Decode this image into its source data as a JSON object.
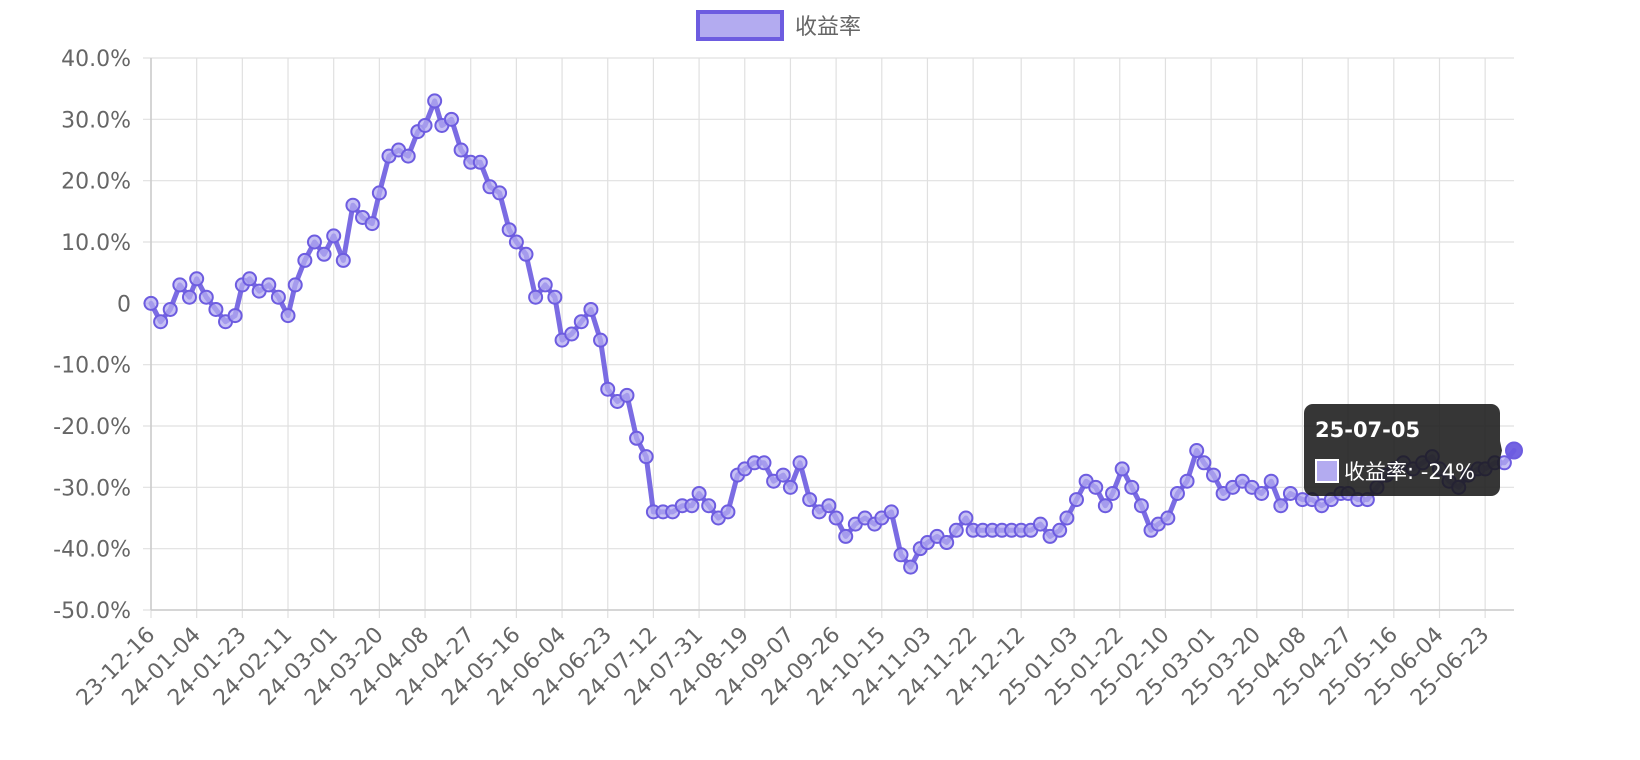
{
  "chart_data": {
    "type": "line",
    "series": [
      {
        "name": "收益率",
        "color": "#6d5ce0",
        "fill_color": "#b3abf0",
        "points": [
          [
            "23-12-16",
            0
          ],
          [
            "23-12-20",
            -3
          ],
          [
            "23-12-24",
            -1
          ],
          [
            "23-12-28",
            3
          ],
          [
            "24-01-01",
            1
          ],
          [
            "24-01-04",
            4
          ],
          [
            "24-01-08",
            1
          ],
          [
            "24-01-12",
            -1
          ],
          [
            "24-01-16",
            -3
          ],
          [
            "24-01-20",
            -2
          ],
          [
            "24-01-23",
            3
          ],
          [
            "24-01-26",
            4
          ],
          [
            "24-01-30",
            2
          ],
          [
            "24-02-03",
            3
          ],
          [
            "24-02-07",
            1
          ],
          [
            "24-02-11",
            -2
          ],
          [
            "24-02-14",
            3
          ],
          [
            "24-02-18",
            7
          ],
          [
            "24-02-22",
            10
          ],
          [
            "24-02-26",
            8
          ],
          [
            "24-03-01",
            11
          ],
          [
            "24-03-05",
            7
          ],
          [
            "24-03-09",
            16
          ],
          [
            "24-03-13",
            14
          ],
          [
            "24-03-17",
            13
          ],
          [
            "24-03-20",
            18
          ],
          [
            "24-03-24",
            24
          ],
          [
            "24-03-28",
            25
          ],
          [
            "24-04-01",
            24
          ],
          [
            "24-04-05",
            28
          ],
          [
            "24-04-08",
            29
          ],
          [
            "24-04-12",
            33
          ],
          [
            "24-04-15",
            29
          ],
          [
            "24-04-19",
            30
          ],
          [
            "24-04-23",
            25
          ],
          [
            "24-04-27",
            23
          ],
          [
            "24-05-01",
            23
          ],
          [
            "24-05-05",
            19
          ],
          [
            "24-05-09",
            18
          ],
          [
            "24-05-13",
            12
          ],
          [
            "24-05-16",
            10
          ],
          [
            "24-05-20",
            8
          ],
          [
            "24-05-24",
            1
          ],
          [
            "24-05-28",
            3
          ],
          [
            "24-06-01",
            1
          ],
          [
            "24-06-04",
            -6
          ],
          [
            "24-06-08",
            -5
          ],
          [
            "24-06-12",
            -3
          ],
          [
            "24-06-16",
            -1
          ],
          [
            "24-06-20",
            -6
          ],
          [
            "24-06-23",
            -14
          ],
          [
            "24-06-27",
            -16
          ],
          [
            "24-07-01",
            -15
          ],
          [
            "24-07-05",
            -22
          ],
          [
            "24-07-09",
            -25
          ],
          [
            "24-07-12",
            -34
          ],
          [
            "24-07-16",
            -34
          ],
          [
            "24-07-20",
            -34
          ],
          [
            "24-07-24",
            -33
          ],
          [
            "24-07-28",
            -33
          ],
          [
            "24-07-31",
            -31
          ],
          [
            "24-08-04",
            -33
          ],
          [
            "24-08-08",
            -35
          ],
          [
            "24-08-12",
            -34
          ],
          [
            "24-08-16",
            -28
          ],
          [
            "24-08-19",
            -27
          ],
          [
            "24-08-23",
            -26
          ],
          [
            "24-08-27",
            -26
          ],
          [
            "24-08-31",
            -29
          ],
          [
            "24-09-04",
            -28
          ],
          [
            "24-09-07",
            -30
          ],
          [
            "24-09-11",
            -26
          ],
          [
            "24-09-15",
            -32
          ],
          [
            "24-09-19",
            -34
          ],
          [
            "24-09-23",
            -33
          ],
          [
            "24-09-26",
            -35
          ],
          [
            "24-09-30",
            -38
          ],
          [
            "24-10-04",
            -36
          ],
          [
            "24-10-08",
            -35
          ],
          [
            "24-10-12",
            -36
          ],
          [
            "24-10-15",
            -35
          ],
          [
            "24-10-19",
            -34
          ],
          [
            "24-10-23",
            -41
          ],
          [
            "24-10-27",
            -43
          ],
          [
            "24-10-31",
            -40
          ],
          [
            "24-11-03",
            -39
          ],
          [
            "24-11-07",
            -38
          ],
          [
            "24-11-11",
            -39
          ],
          [
            "24-11-15",
            -37
          ],
          [
            "24-11-19",
            -35
          ],
          [
            "24-11-22",
            -37
          ],
          [
            "24-11-26",
            -37
          ],
          [
            "24-11-30",
            -37
          ],
          [
            "24-12-04",
            -37
          ],
          [
            "24-12-08",
            -37
          ],
          [
            "24-12-12",
            -37
          ],
          [
            "24-12-16",
            -37
          ],
          [
            "24-12-20",
            -36
          ],
          [
            "24-12-24",
            -38
          ],
          [
            "24-12-28",
            -37
          ],
          [
            "24-12-31",
            -35
          ],
          [
            "25-01-04",
            -32
          ],
          [
            "25-01-08",
            -29
          ],
          [
            "25-01-12",
            -30
          ],
          [
            "25-01-16",
            -33
          ],
          [
            "25-01-19",
            -31
          ],
          [
            "25-01-23",
            -27
          ],
          [
            "25-01-27",
            -30
          ],
          [
            "25-01-31",
            -33
          ],
          [
            "25-02-04",
            -37
          ],
          [
            "25-02-07",
            -36
          ],
          [
            "25-02-11",
            -35
          ],
          [
            "25-02-15",
            -31
          ],
          [
            "25-02-19",
            -29
          ],
          [
            "25-02-23",
            -24
          ],
          [
            "25-02-26",
            -26
          ],
          [
            "25-03-02",
            -28
          ],
          [
            "25-03-06",
            -31
          ],
          [
            "25-03-10",
            -30
          ],
          [
            "25-03-14",
            -29
          ],
          [
            "25-03-18",
            -30
          ],
          [
            "25-03-22",
            -31
          ],
          [
            "25-03-26",
            -29
          ],
          [
            "25-03-30",
            -33
          ],
          [
            "25-04-03",
            -31
          ],
          [
            "25-04-08",
            -32
          ],
          [
            "25-04-12",
            -32
          ],
          [
            "25-04-16",
            -33
          ],
          [
            "25-04-20",
            -32
          ],
          [
            "25-04-24",
            -31
          ],
          [
            "25-04-27",
            -31
          ],
          [
            "25-05-01",
            -32
          ],
          [
            "25-05-05",
            -32
          ],
          [
            "25-05-09",
            -30
          ],
          [
            "25-05-13",
            -28
          ],
          [
            "25-05-16",
            -27
          ],
          [
            "25-05-20",
            -26
          ],
          [
            "25-05-24",
            -27
          ],
          [
            "25-05-28",
            -26
          ],
          [
            "25-06-01",
            -25
          ],
          [
            "25-06-04",
            -27
          ],
          [
            "25-06-08",
            -29
          ],
          [
            "25-06-12",
            -30
          ],
          [
            "25-06-16",
            -28
          ],
          [
            "25-06-20",
            -27
          ],
          [
            "25-06-23",
            -27
          ],
          [
            "25-06-27",
            -26
          ],
          [
            "25-07-01",
            -26
          ],
          [
            "25-07-05",
            -24
          ]
        ]
      }
    ],
    "x_ticks": [
      "23-12-16",
      "24-01-04",
      "24-01-23",
      "24-02-11",
      "24-03-01",
      "24-03-20",
      "24-04-08",
      "24-04-27",
      "24-05-16",
      "24-06-04",
      "24-06-23",
      "24-07-12",
      "24-07-31",
      "24-08-19",
      "24-09-07",
      "24-09-26",
      "24-10-15",
      "24-11-03",
      "24-11-22",
      "24-12-12",
      "25-01-03",
      "25-01-22",
      "25-02-10",
      "25-03-01",
      "25-03-20",
      "25-04-08",
      "25-04-27",
      "25-05-16",
      "25-06-04",
      "25-06-23"
    ],
    "y_ticks": [
      {
        "value": 40,
        "label": "40.0%"
      },
      {
        "value": 30,
        "label": "30.0%"
      },
      {
        "value": 20,
        "label": "20.0%"
      },
      {
        "value": 10,
        "label": "10.0%"
      },
      {
        "value": 0,
        "label": "0"
      },
      {
        "value": -10,
        "label": "-10.0%"
      },
      {
        "value": -20,
        "label": "-20.0%"
      },
      {
        "value": -30,
        "label": "-30.0%"
      },
      {
        "value": -40,
        "label": "-40.0%"
      },
      {
        "value": -50,
        "label": "-50.0%"
      }
    ],
    "ylim": [
      -50,
      40
    ],
    "grid": true,
    "legend": {
      "position": "top-center",
      "label": "收益率"
    },
    "tooltip": {
      "title": "25-07-05",
      "label": "收益率: -24%",
      "value": -24
    }
  },
  "colors": {
    "line": "#6d5ce0",
    "fill": "#b3abf0",
    "grid": "#e0e0e0",
    "axis": "#cccccc",
    "tooltip_bg": "#1a1a1a"
  }
}
